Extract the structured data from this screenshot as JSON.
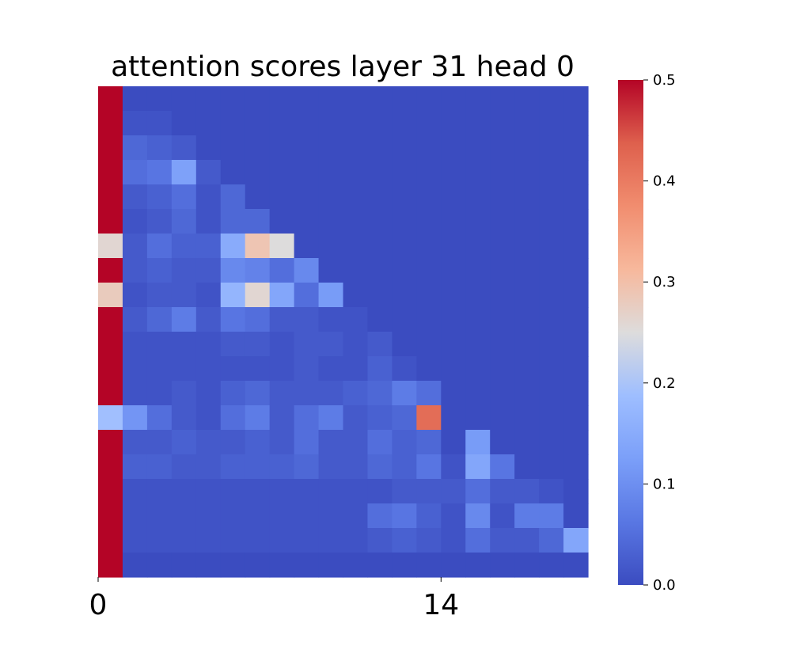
{
  "chart_data": {
    "type": "heatmap",
    "title": "attention scores layer 31 head 0",
    "xlabel": "",
    "ylabel": "",
    "rows": 20,
    "cols": 20,
    "x_ticks": [
      {
        "index": 0,
        "label": "0"
      },
      {
        "index": 14,
        "label": "14"
      }
    ],
    "colorbar": {
      "colormap": "coolwarm",
      "vmin": 0.0,
      "vmax": 0.5,
      "ticks": [
        "0.0",
        "0.1",
        "0.2",
        "0.3",
        "0.4",
        "0.5"
      ]
    },
    "masked": "upper triangle above diagonal",
    "values": [
      [
        0.5,
        0.0,
        0.0,
        0.0,
        0.0,
        0.0,
        0.0,
        0.0,
        0.0,
        0.0,
        0.0,
        0.0,
        0.0,
        0.0,
        0.0,
        0.0,
        0.0,
        0.0,
        0.0,
        0.0
      ],
      [
        0.5,
        0.01,
        0.01,
        0.0,
        0.0,
        0.0,
        0.0,
        0.0,
        0.0,
        0.0,
        0.0,
        0.0,
        0.0,
        0.0,
        0.0,
        0.0,
        0.0,
        0.0,
        0.0,
        0.0
      ],
      [
        0.5,
        0.04,
        0.03,
        0.02,
        0.0,
        0.0,
        0.0,
        0.0,
        0.0,
        0.0,
        0.0,
        0.0,
        0.0,
        0.0,
        0.0,
        0.0,
        0.0,
        0.0,
        0.0,
        0.0
      ],
      [
        0.5,
        0.05,
        0.06,
        0.13,
        0.02,
        0.0,
        0.0,
        0.0,
        0.0,
        0.0,
        0.0,
        0.0,
        0.0,
        0.0,
        0.0,
        0.0,
        0.0,
        0.0,
        0.0,
        0.0
      ],
      [
        0.5,
        0.02,
        0.03,
        0.05,
        0.01,
        0.04,
        0.0,
        0.0,
        0.0,
        0.0,
        0.0,
        0.0,
        0.0,
        0.0,
        0.0,
        0.0,
        0.0,
        0.0,
        0.0,
        0.0
      ],
      [
        0.5,
        0.01,
        0.02,
        0.04,
        0.01,
        0.04,
        0.04,
        0.0,
        0.0,
        0.0,
        0.0,
        0.0,
        0.0,
        0.0,
        0.0,
        0.0,
        0.0,
        0.0,
        0.0,
        0.0
      ],
      [
        0.26,
        0.02,
        0.05,
        0.03,
        0.03,
        0.15,
        0.29,
        0.25,
        0.0,
        0.0,
        0.0,
        0.0,
        0.0,
        0.0,
        0.0,
        0.0,
        0.0,
        0.0,
        0.0,
        0.0
      ],
      [
        0.5,
        0.02,
        0.03,
        0.02,
        0.02,
        0.09,
        0.08,
        0.05,
        0.09,
        0.0,
        0.0,
        0.0,
        0.0,
        0.0,
        0.0,
        0.0,
        0.0,
        0.0,
        0.0,
        0.0
      ],
      [
        0.28,
        0.01,
        0.02,
        0.02,
        0.01,
        0.17,
        0.26,
        0.14,
        0.05,
        0.12,
        0.0,
        0.0,
        0.0,
        0.0,
        0.0,
        0.0,
        0.0,
        0.0,
        0.0,
        0.0
      ],
      [
        0.5,
        0.02,
        0.04,
        0.07,
        0.02,
        0.06,
        0.05,
        0.02,
        0.02,
        0.01,
        0.01,
        0.0,
        0.0,
        0.0,
        0.0,
        0.0,
        0.0,
        0.0,
        0.0,
        0.0
      ],
      [
        0.5,
        0.01,
        0.01,
        0.01,
        0.01,
        0.02,
        0.02,
        0.01,
        0.02,
        0.02,
        0.01,
        0.02,
        0.0,
        0.0,
        0.0,
        0.0,
        0.0,
        0.0,
        0.0,
        0.0
      ],
      [
        0.5,
        0.01,
        0.01,
        0.01,
        0.01,
        0.01,
        0.01,
        0.01,
        0.02,
        0.01,
        0.01,
        0.03,
        0.01,
        0.0,
        0.0,
        0.0,
        0.0,
        0.0,
        0.0,
        0.0
      ],
      [
        0.5,
        0.01,
        0.01,
        0.02,
        0.01,
        0.03,
        0.04,
        0.02,
        0.02,
        0.02,
        0.03,
        0.04,
        0.07,
        0.05,
        0.0,
        0.0,
        0.0,
        0.0,
        0.0,
        0.0
      ],
      [
        0.19,
        0.11,
        0.05,
        0.02,
        0.01,
        0.05,
        0.07,
        0.02,
        0.05,
        0.07,
        0.02,
        0.03,
        0.04,
        0.42,
        0.0,
        0.0,
        0.0,
        0.0,
        0.0,
        0.0
      ],
      [
        0.5,
        0.02,
        0.02,
        0.03,
        0.02,
        0.02,
        0.03,
        0.02,
        0.05,
        0.02,
        0.02,
        0.05,
        0.03,
        0.04,
        0.0,
        0.12,
        0.0,
        0.0,
        0.0,
        0.0
      ],
      [
        0.5,
        0.03,
        0.03,
        0.02,
        0.02,
        0.03,
        0.03,
        0.03,
        0.04,
        0.02,
        0.02,
        0.04,
        0.03,
        0.06,
        0.01,
        0.14,
        0.06,
        0.0,
        0.0,
        0.0
      ],
      [
        0.5,
        0.01,
        0.01,
        0.01,
        0.01,
        0.01,
        0.01,
        0.01,
        0.01,
        0.01,
        0.01,
        0.01,
        0.02,
        0.02,
        0.02,
        0.05,
        0.02,
        0.02,
        0.01,
        0.0
      ],
      [
        0.5,
        0.01,
        0.01,
        0.01,
        0.01,
        0.01,
        0.01,
        0.01,
        0.01,
        0.01,
        0.01,
        0.05,
        0.06,
        0.03,
        0.01,
        0.09,
        0.01,
        0.07,
        0.07,
        0.0
      ],
      [
        0.5,
        0.01,
        0.01,
        0.01,
        0.01,
        0.01,
        0.01,
        0.01,
        0.01,
        0.01,
        0.01,
        0.02,
        0.03,
        0.02,
        0.01,
        0.05,
        0.02,
        0.02,
        0.04,
        0.14
      ],
      [
        0.5,
        0.0,
        0.0,
        0.0,
        0.0,
        0.0,
        0.0,
        0.0,
        0.0,
        0.0,
        0.0,
        0.0,
        0.0,
        0.0,
        0.0,
        0.0,
        0.0,
        0.0,
        0.0,
        0.0
      ]
    ]
  }
}
